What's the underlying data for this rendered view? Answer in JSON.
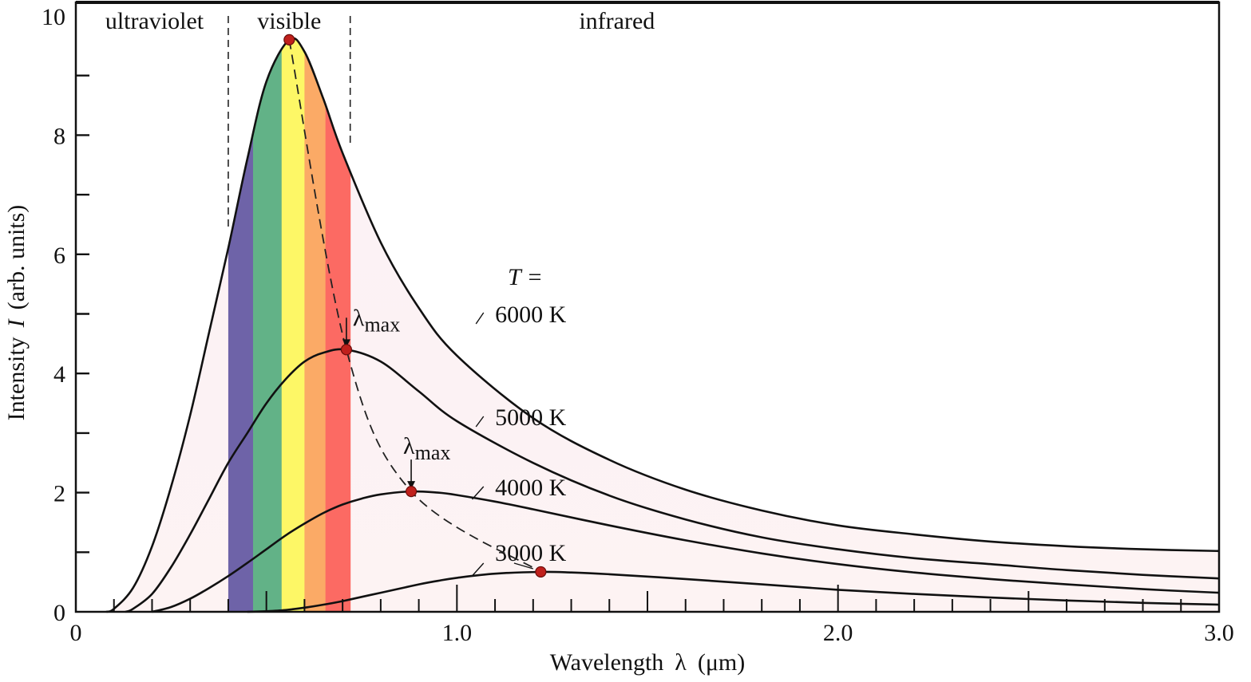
{
  "chart_data": {
    "type": "line",
    "title": "",
    "xlabel": "Wavelength λ (μm)",
    "xlabel_parts": {
      "text": "Wavelength",
      "symbol": "λ",
      "unit": "(μm)"
    },
    "ylabel": "Intensity I (arb. units)",
    "ylabel_parts": {
      "text": "Intensity",
      "symbol": "I",
      "unit": "(arb. units)"
    },
    "xlim": [
      0,
      3.0
    ],
    "ylim": [
      0,
      10
    ],
    "x_ticks": [
      {
        "value": 0,
        "label": "0"
      },
      {
        "value": 1.0,
        "label": "1.0"
      },
      {
        "value": 2.0,
        "label": "2.0"
      },
      {
        "value": 3.0,
        "label": "3.0"
      }
    ],
    "x_minor_tick_step": 0.1,
    "x_mid_tick_step": 0.5,
    "y_ticks": [
      {
        "value": 0,
        "label": "0"
      },
      {
        "value": 2,
        "label": "2"
      },
      {
        "value": 4,
        "label": "4"
      },
      {
        "value": 6,
        "label": "6"
      },
      {
        "value": 8,
        "label": "8"
      },
      {
        "value": 10,
        "label": "10"
      }
    ],
    "y_minor_tick_step": 1,
    "grid": false,
    "regions": [
      {
        "label": "ultraviolet",
        "from": 0,
        "to": 0.4
      },
      {
        "label": "visible",
        "from": 0.4,
        "to": 0.72
      },
      {
        "label": "infrared",
        "from": 0.72,
        "to": 3.0
      }
    ],
    "spectrum_bands": [
      {
        "name": "violet",
        "from": 0.4,
        "to": 0.465,
        "color": "#6e63a8"
      },
      {
        "name": "green",
        "from": 0.465,
        "to": 0.54,
        "color": "#62b287"
      },
      {
        "name": "yellow",
        "from": 0.54,
        "to": 0.6,
        "color": "#fdf766"
      },
      {
        "name": "orange",
        "from": 0.6,
        "to": 0.655,
        "color": "#fbaa66"
      },
      {
        "name": "red",
        "from": 0.655,
        "to": 0.72,
        "color": "#fc6a63"
      }
    ],
    "temperature_header": "T =",
    "series": [
      {
        "name": "6000 K",
        "T": 6000,
        "peak_x": 0.56,
        "peak_y": 9.6,
        "x": [
          0.08,
          0.1,
          0.15,
          0.2,
          0.25,
          0.3,
          0.35,
          0.4,
          0.45,
          0.5,
          0.56,
          0.6,
          0.65,
          0.7,
          0.8,
          0.9,
          1.0,
          1.2,
          1.4,
          1.6,
          1.8,
          2.0,
          2.2,
          2.4,
          2.6,
          2.8,
          3.0
        ],
        "y": [
          0,
          0.05,
          0.4,
          1.1,
          2.1,
          3.3,
          4.7,
          6.1,
          7.6,
          8.9,
          9.6,
          9.4,
          8.6,
          7.7,
          6.2,
          5.1,
          4.3,
          3.25,
          2.55,
          2.05,
          1.7,
          1.45,
          1.3,
          1.18,
          1.1,
          1.05,
          1.02
        ]
      },
      {
        "name": "5000 K",
        "T": 5000,
        "peak_x": 0.71,
        "peak_y": 4.4,
        "x": [
          0.13,
          0.15,
          0.2,
          0.25,
          0.3,
          0.35,
          0.4,
          0.45,
          0.5,
          0.55,
          0.6,
          0.65,
          0.71,
          0.8,
          0.9,
          1.0,
          1.2,
          1.4,
          1.6,
          1.8,
          2.0,
          2.2,
          2.4,
          2.6,
          2.8,
          3.0
        ],
        "y": [
          0,
          0.05,
          0.3,
          0.75,
          1.3,
          1.9,
          2.5,
          3.0,
          3.5,
          3.9,
          4.2,
          4.35,
          4.4,
          4.2,
          3.7,
          3.2,
          2.5,
          1.95,
          1.55,
          1.25,
          1.05,
          0.9,
          0.8,
          0.7,
          0.62,
          0.56
        ]
      },
      {
        "name": "4000 K",
        "T": 4000,
        "peak_x": 0.88,
        "peak_y": 2.02,
        "x": [
          0.2,
          0.25,
          0.3,
          0.35,
          0.4,
          0.45,
          0.5,
          0.55,
          0.6,
          0.65,
          0.7,
          0.75,
          0.8,
          0.88,
          0.95,
          1.0,
          1.1,
          1.2,
          1.4,
          1.6,
          1.8,
          2.0,
          2.2,
          2.4,
          2.6,
          2.8,
          3.0
        ],
        "y": [
          0,
          0.08,
          0.22,
          0.4,
          0.6,
          0.82,
          1.05,
          1.28,
          1.48,
          1.66,
          1.8,
          1.9,
          1.97,
          2.02,
          2.0,
          1.96,
          1.85,
          1.72,
          1.45,
          1.2,
          0.98,
          0.8,
          0.66,
          0.55,
          0.46,
          0.38,
          0.32
        ]
      },
      {
        "name": "3000 K",
        "T": 3000,
        "peak_x": 1.22,
        "peak_y": 0.67,
        "x": [
          0.45,
          0.5,
          0.55,
          0.6,
          0.65,
          0.7,
          0.75,
          0.8,
          0.85,
          0.9,
          0.95,
          1.0,
          1.1,
          1.22,
          1.3,
          1.4,
          1.6,
          1.8,
          2.0,
          2.2,
          2.4,
          2.6,
          2.8,
          3.0
        ],
        "y": [
          0,
          0.01,
          0.03,
          0.07,
          0.12,
          0.18,
          0.25,
          0.32,
          0.39,
          0.46,
          0.52,
          0.57,
          0.64,
          0.67,
          0.66,
          0.63,
          0.55,
          0.46,
          0.37,
          0.3,
          0.24,
          0.19,
          0.15,
          0.12
        ]
      }
    ],
    "lambda_max_label": "λmax",
    "lambda_max_symbol": "λ",
    "lambda_max_subscript": "max",
    "annotations": [
      {
        "text": "λmax",
        "target_series": "5000 K"
      },
      {
        "text": "λmax",
        "target_series": "4000 K"
      }
    ],
    "wien_locus_style": "dashed",
    "marker_color": "#c0201c",
    "fill_color": "#fbf1f6"
  }
}
